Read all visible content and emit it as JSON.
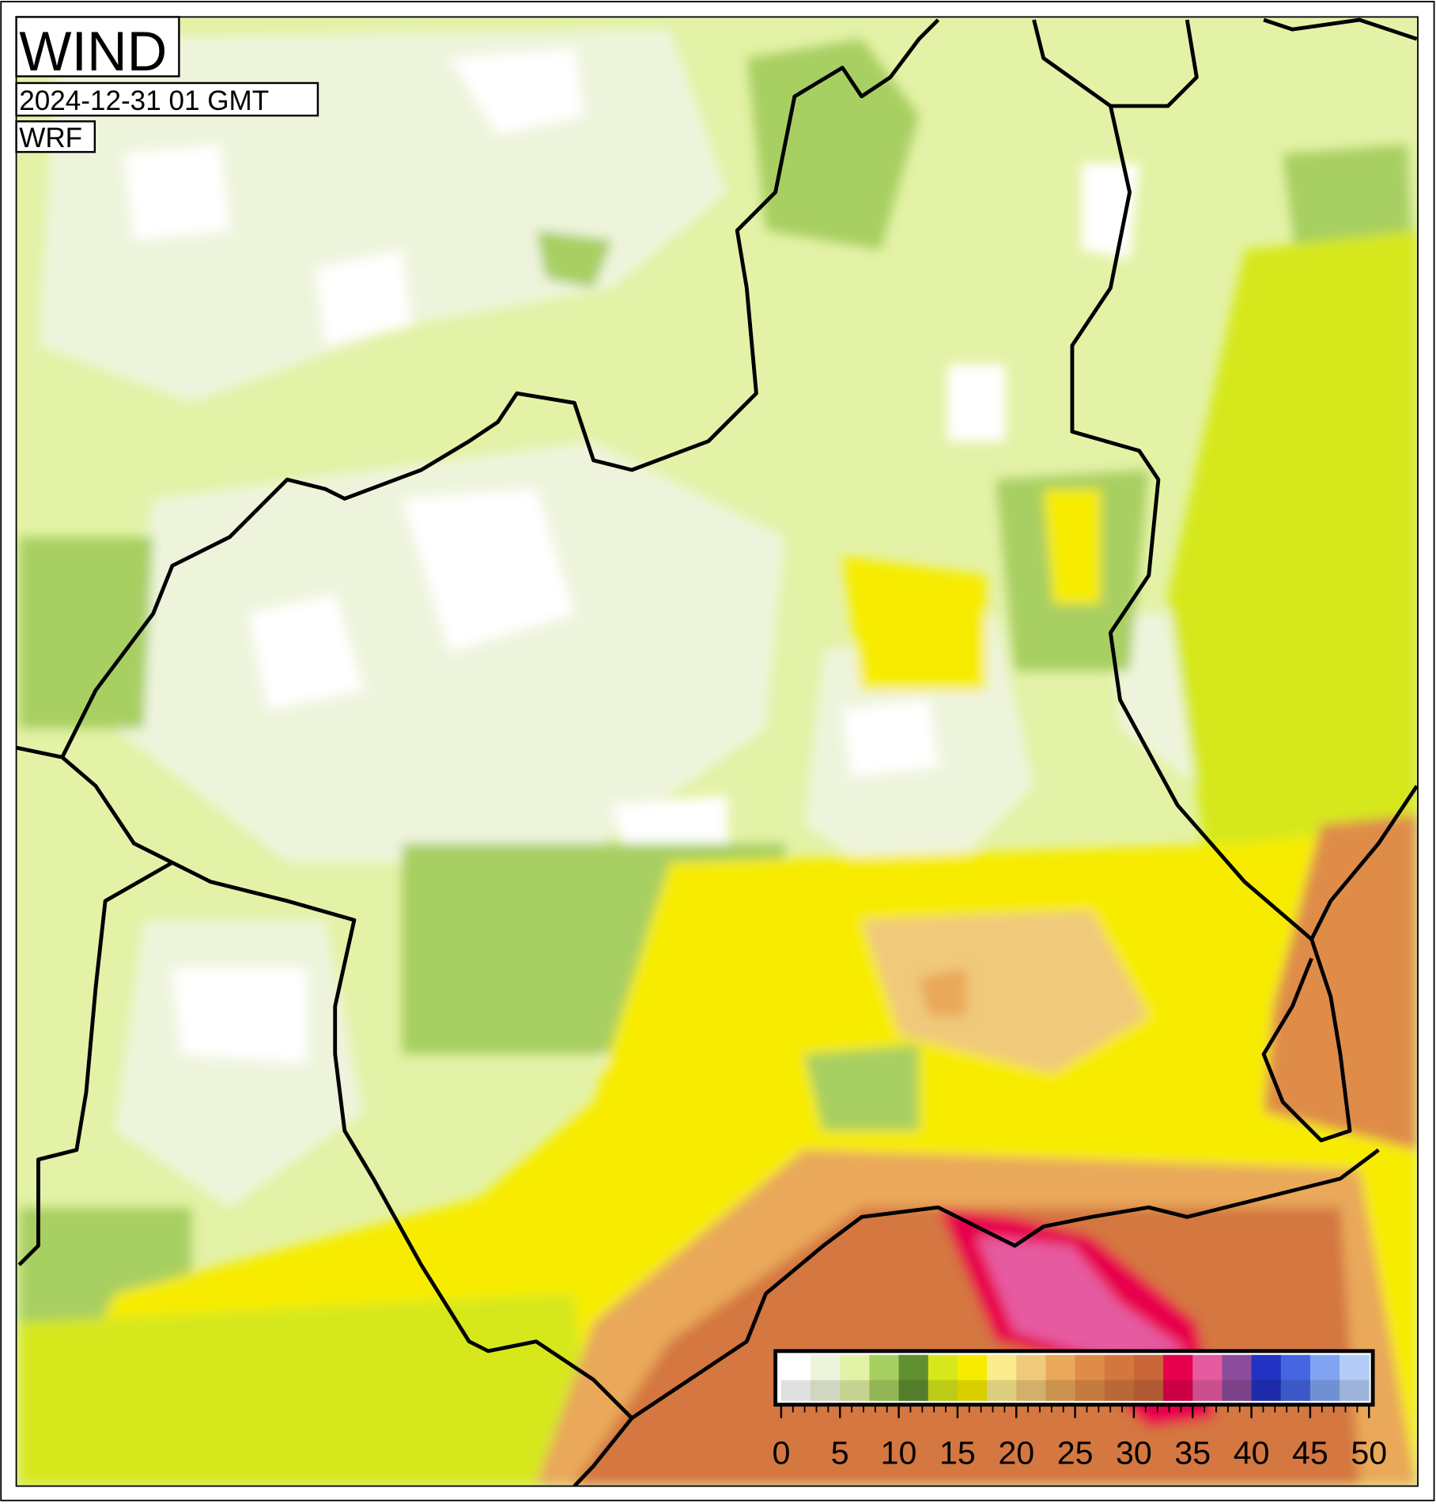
{
  "header": {
    "title": "WIND",
    "time": "2024-12-31 01 GMT",
    "model": "WRF"
  },
  "colorbar": {
    "ticks": [
      0,
      5,
      10,
      15,
      20,
      25,
      30,
      35,
      40,
      45,
      50
    ],
    "colors": [
      "#ffffff",
      "#eef4dc",
      "#e3f2a6",
      "#a8cf62",
      "#5f8f30",
      "#d6e81a",
      "#f7ec00",
      "#faeb8e",
      "#f0c97c",
      "#e9a85a",
      "#df8c48",
      "#d4773f",
      "#c9663a",
      "#e8004e",
      "#e65aa0",
      "#8c4c9c",
      "#2232c2",
      "#4565e2",
      "#80a4f2",
      "#b4ccf8"
    ]
  }
}
